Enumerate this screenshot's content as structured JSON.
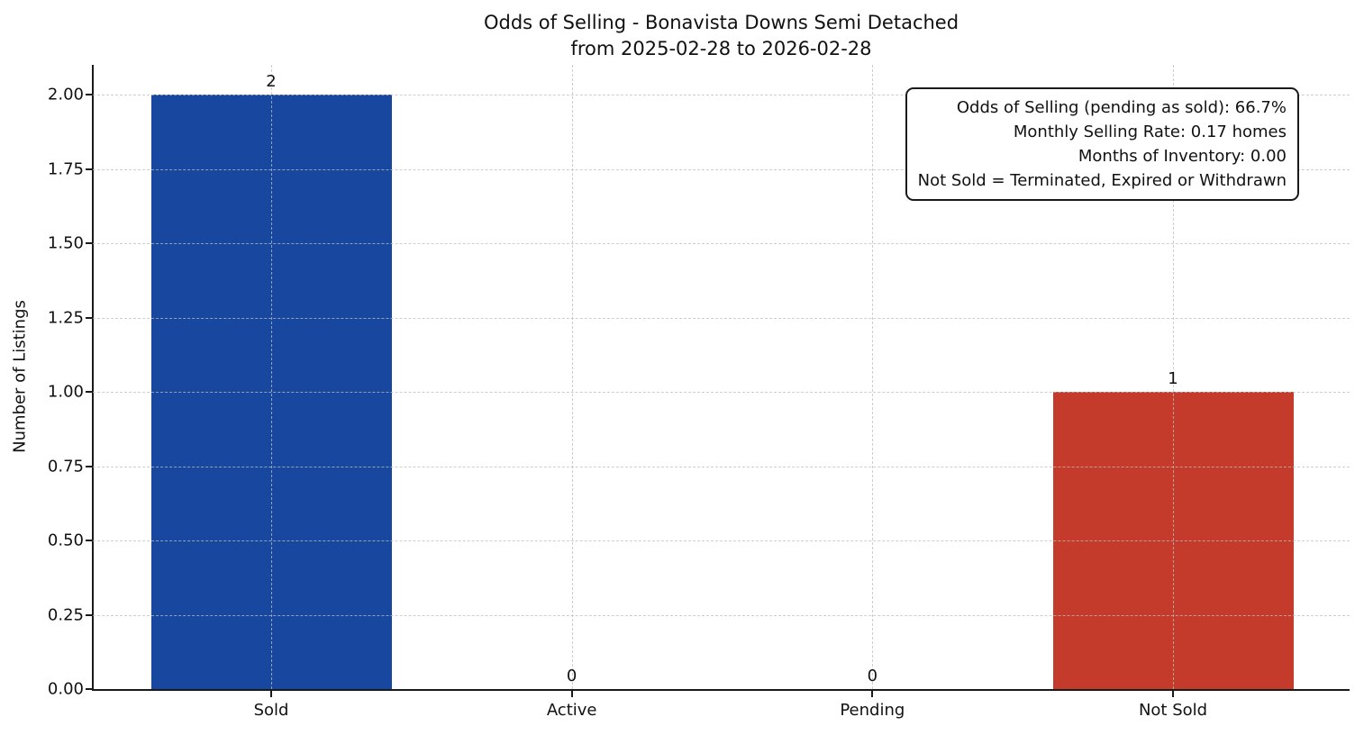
{
  "figure": {
    "title_line1": "Odds of Selling - Bonavista Downs Semi Detached",
    "title_line2": "from 2025-02-28 to 2026-02-28"
  },
  "chart_data": {
    "type": "bar",
    "title": "Odds of Selling - Bonavista Downs Semi Detached\nfrom 2025-02-28 to 2026-02-28",
    "categories": [
      "Sold",
      "Active",
      "Pending",
      "Not Sold"
    ],
    "values": [
      2,
      0,
      0,
      1
    ],
    "bar_value_labels": [
      "2",
      "0",
      "0",
      "1"
    ],
    "bar_colors": [
      "#17479e",
      null,
      null,
      "#c43b2c"
    ],
    "xlabel": "",
    "ylabel": "Number of Listings",
    "ylim": [
      0,
      2.1
    ],
    "yticks": [
      0,
      0.25,
      0.5,
      0.75,
      1.0,
      1.25,
      1.5,
      1.75,
      2.0
    ],
    "ytick_labels": [
      "0.00",
      "0.25",
      "0.50",
      "0.75",
      "1.00",
      "1.25",
      "1.50",
      "1.75",
      "2.00"
    ],
    "grid": true,
    "grid_style": "dashed",
    "legend_position": "none"
  },
  "annotation_box": {
    "lines": [
      "Odds of Selling (pending as sold): 66.7%",
      "Monthly Selling Rate: 0.17 homes",
      "Months of Inventory: 0.00",
      "Not Sold = Terminated, Expired or Withdrawn"
    ]
  }
}
